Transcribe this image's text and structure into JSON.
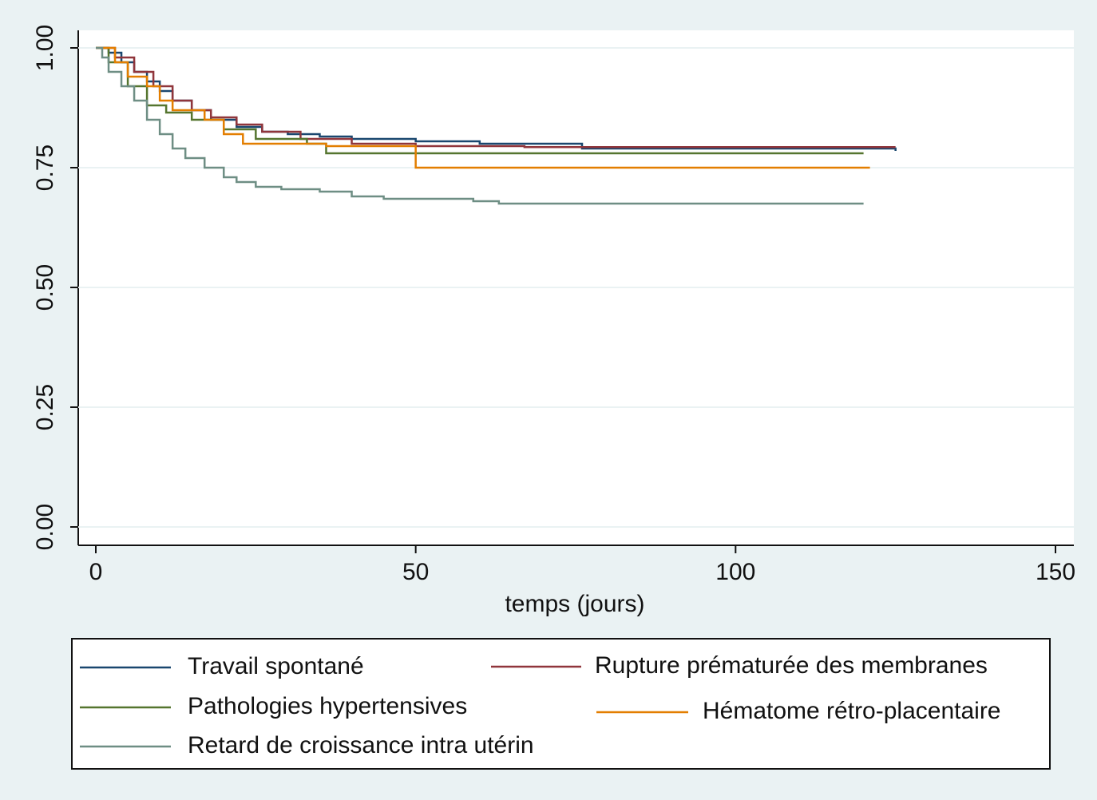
{
  "chart_data": {
    "type": "line",
    "step": true,
    "xlabel": "temps (jours)",
    "xlim": [
      0,
      150
    ],
    "xticks": [
      0,
      50,
      100,
      150
    ],
    "ylim": [
      0,
      1
    ],
    "yticks": [
      {
        "value": 0,
        "label": "0.00"
      },
      0.25,
      {
        "value": 0.5,
        "label": "0.50"
      },
      0.75,
      {
        "value": 1,
        "label": "1.00"
      }
    ],
    "grid": true,
    "series": [
      {
        "name": "Travail spontané",
        "color": "#1a476f",
        "x": [
          0,
          2,
          4,
          6,
          8,
          10,
          12,
          15,
          18,
          22,
          26,
          30,
          35,
          40,
          50,
          60,
          76,
          125
        ],
        "values": [
          1,
          0.99,
          0.97,
          0.95,
          0.93,
          0.91,
          0.89,
          0.87,
          0.85,
          0.835,
          0.825,
          0.82,
          0.815,
          0.81,
          0.805,
          0.8,
          0.79,
          0.785
        ]
      },
      {
        "name": "Rupture prématurée des membranes",
        "color": "#90353b",
        "x": [
          0,
          3,
          6,
          9,
          12,
          15,
          18,
          22,
          26,
          32,
          40,
          50,
          67,
          125
        ],
        "values": [
          1,
          0.98,
          0.95,
          0.92,
          0.89,
          0.87,
          0.855,
          0.84,
          0.825,
          0.81,
          0.8,
          0.795,
          0.793,
          0.793
        ]
      },
      {
        "name": "Pathologies hypertensives",
        "color": "#55752f",
        "x": [
          0,
          2,
          5,
          8,
          11,
          15,
          20,
          25,
          33,
          36,
          120
        ],
        "values": [
          1,
          0.97,
          0.92,
          0.88,
          0.865,
          0.85,
          0.83,
          0.81,
          0.8,
          0.78,
          0.78
        ]
      },
      {
        "name": "Hématome rétro-placentaire",
        "color": "#e37e00",
        "x": [
          0,
          3,
          5,
          8,
          10,
          12,
          17,
          20,
          23,
          36,
          50,
          121
        ],
        "values": [
          1,
          0.97,
          0.94,
          0.92,
          0.89,
          0.87,
          0.85,
          0.82,
          0.8,
          0.795,
          0.75,
          0.75
        ]
      },
      {
        "name": "Retard de croissance intra utérin",
        "color": "#6e8e84",
        "x": [
          0,
          1,
          2,
          4,
          6,
          8,
          10,
          12,
          14,
          17,
          20,
          22,
          25,
          29,
          35,
          40,
          45,
          59,
          63,
          120
        ],
        "values": [
          1,
          0.98,
          0.95,
          0.92,
          0.89,
          0.85,
          0.82,
          0.79,
          0.77,
          0.75,
          0.73,
          0.72,
          0.71,
          0.705,
          0.7,
          0.69,
          0.685,
          0.68,
          0.675,
          0.675
        ]
      }
    ]
  }
}
